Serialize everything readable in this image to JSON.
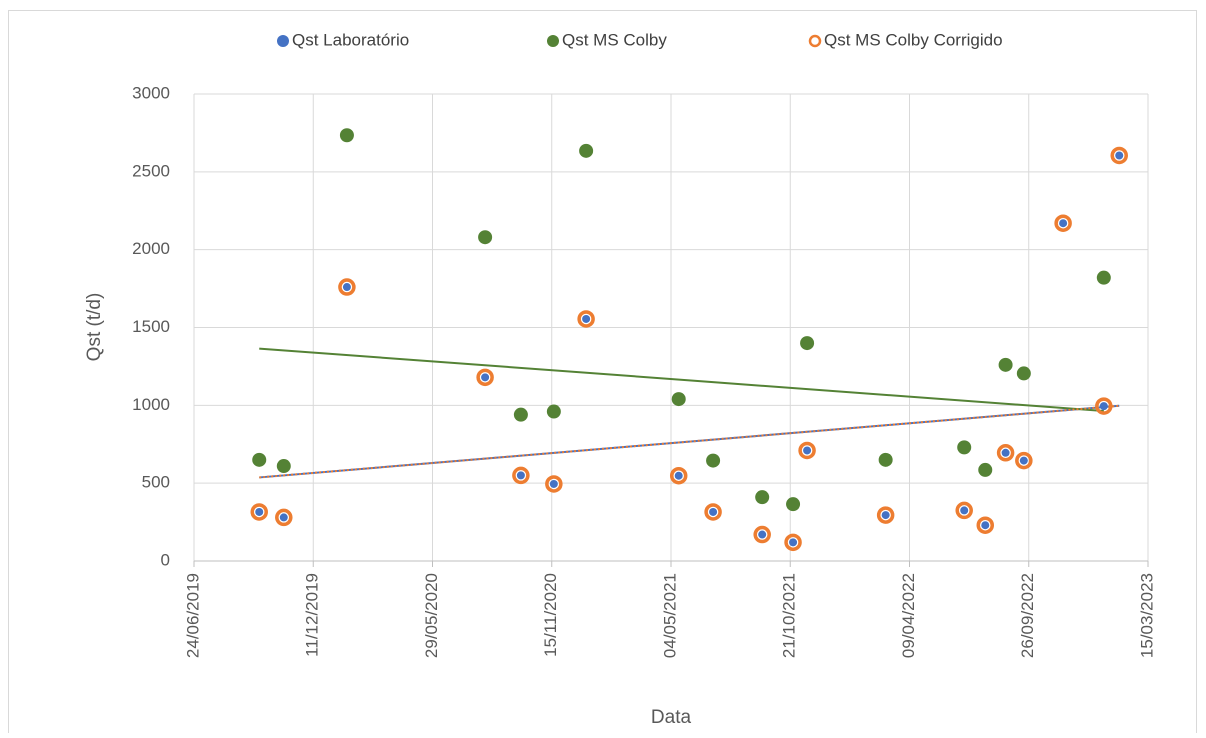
{
  "chart_data": {
    "type": "scatter",
    "x_label": "Data",
    "y_label": "Qst  (t/d)",
    "legend": "top",
    "grid": true,
    "x": [
      "25/09/2019",
      "30/10/2019",
      "28/01/2020",
      "12/08/2020",
      "02/10/2020",
      "18/11/2020",
      "03/01/2021",
      "15/05/2021",
      "03/07/2021",
      "11/09/2021",
      "25/10/2021",
      "14/11/2021",
      "06/03/2022",
      "26/06/2022",
      "26/07/2022",
      "24/08/2022",
      "19/09/2022",
      "14/11/2022",
      "11/01/2023",
      "02/02/2023"
    ],
    "series": [
      {
        "name": "Qst Laboratório",
        "color": "#4472c4",
        "marker": "filled",
        "trendline": true,
        "values": [
          315,
          280,
          1760,
          1180,
          550,
          495,
          1555,
          548,
          315,
          170,
          120,
          710,
          295,
          325,
          230,
          695,
          645,
          2170,
          995,
          2605
        ]
      },
      {
        "name": "Qst MS Colby",
        "color": "#548235",
        "marker": "filled",
        "trendline": true,
        "values": [
          650,
          610,
          2735,
          2080,
          940,
          960,
          2635,
          1040,
          645,
          410,
          365,
          1400,
          650,
          730,
          585,
          1260,
          1205,
          null,
          1820,
          null
        ]
      },
      {
        "name": "Qst MS Colby Corrigido",
        "color": "#ed7d31",
        "marker": "ring",
        "trendline": true,
        "values": [
          315,
          280,
          1760,
          1180,
          550,
          495,
          1555,
          548,
          315,
          170,
          120,
          710,
          295,
          325,
          230,
          695,
          645,
          2170,
          995,
          2605
        ]
      }
    ],
    "xlim": [
      "24/06/2019",
      "15/03/2023"
    ],
    "xticks": [
      "24/06/2019",
      "11/12/2019",
      "29/05/2020",
      "15/11/2020",
      "04/05/2021",
      "21/10/2021",
      "09/04/2022",
      "26/09/2022",
      "15/03/2023"
    ],
    "ylim": [
      0,
      3000
    ],
    "yticks": [
      0,
      500,
      1000,
      1500,
      2000,
      2500,
      3000
    ]
  }
}
